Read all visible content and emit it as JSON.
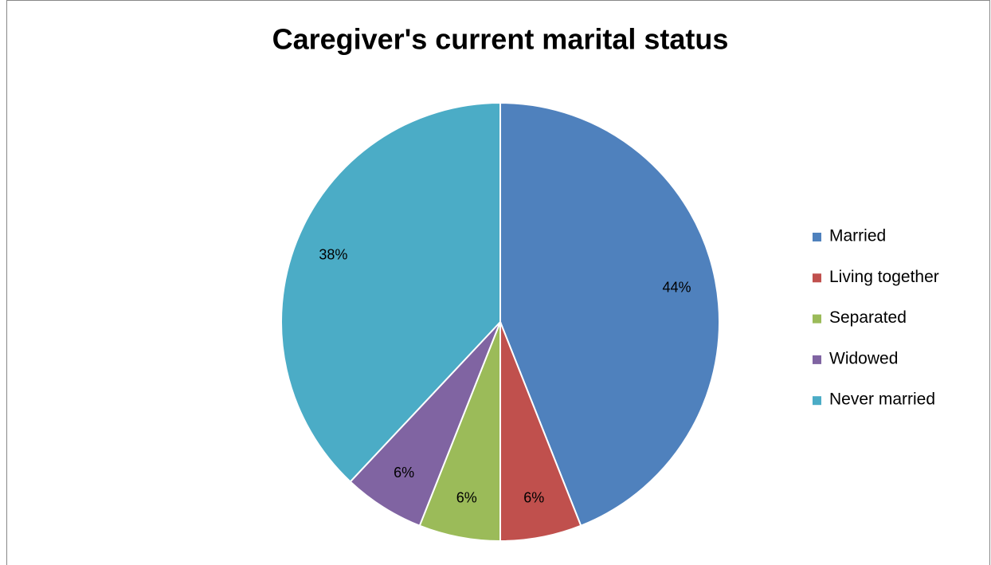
{
  "chart_data": {
    "type": "pie",
    "title": "Caregiver's current marital status",
    "categories": [
      "Married",
      "Living together",
      "Separated",
      "Widowed",
      "Never married"
    ],
    "values": [
      44,
      6,
      6,
      6,
      38
    ],
    "value_labels": [
      "44%",
      "6%",
      "6%",
      "6%",
      "38%"
    ],
    "colors": [
      "#4f81bd",
      "#c0504d",
      "#9bbb59",
      "#8064a2",
      "#4bacc6"
    ],
    "legend": "right"
  }
}
